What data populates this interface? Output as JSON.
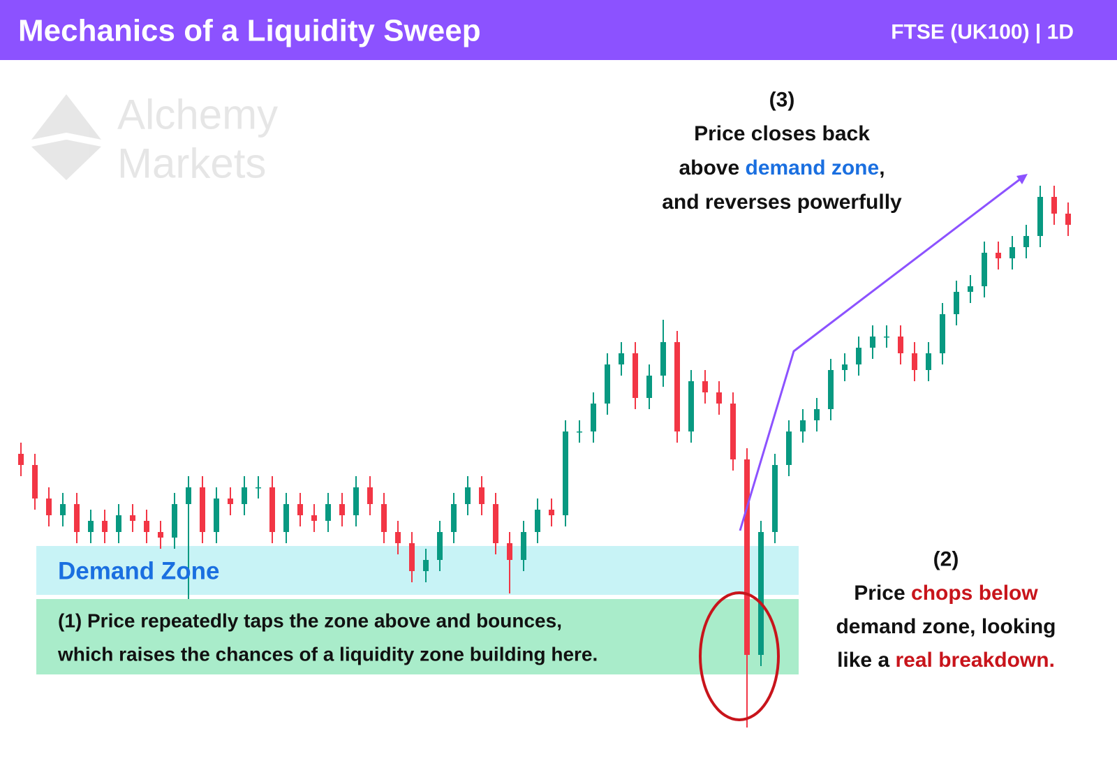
{
  "chart_data": {
    "type": "candlestick",
    "title": "Mechanics of a Liquidity Sweep",
    "subtitle": "FTSE  (UK100) | 1D",
    "watermark": [
      "Alchemy",
      "Markets"
    ],
    "zone_label": "Demand Zone",
    "annotations": {
      "one": [
        "(1) Price repeatedly taps the zone above and bounces,",
        "which raises the chances of a liquidity zone building here."
      ],
      "two": {
        "number": "(2)",
        "lines": [
          [
            "Price ",
            "chops below"
          ],
          [
            "demand zone, looking"
          ],
          [
            "like a ",
            "real breakdown."
          ]
        ]
      },
      "three": {
        "number": "(3)",
        "lines": [
          [
            "Price closes back"
          ],
          [
            "above ",
            "demand zone",
            ","
          ],
          [
            "and reverses powerfully"
          ]
        ]
      }
    },
    "up_color": "#089981",
    "down_color": "#f23645",
    "ylim": [
      0,
      100
    ],
    "open": [
      50,
      48,
      42,
      39,
      41,
      36,
      38,
      36,
      39,
      38,
      36,
      35,
      41,
      44,
      36,
      42,
      41,
      44,
      44,
      36,
      41,
      39,
      38,
      41,
      39,
      44,
      41,
      36,
      34,
      29,
      31,
      36,
      41,
      44,
      41,
      34,
      31,
      36,
      40,
      39,
      54,
      54,
      59,
      66,
      68,
      60,
      64,
      70,
      54,
      63,
      61,
      59,
      49,
      14,
      36,
      48,
      54,
      56,
      58,
      65,
      66,
      69,
      71,
      71,
      68,
      65,
      68,
      75,
      79,
      80,
      86,
      85,
      87,
      89,
      96,
      93
    ],
    "high": [
      52,
      50,
      44,
      43,
      43,
      40,
      40,
      41,
      41,
      40,
      38,
      43,
      46,
      46,
      44,
      44,
      46,
      46,
      46,
      43,
      43,
      41,
      43,
      43,
      46,
      46,
      43,
      38,
      36,
      33,
      38,
      43,
      46,
      46,
      43,
      36,
      38,
      42,
      42,
      56,
      56,
      61,
      68,
      70,
      70,
      66,
      74,
      72,
      65,
      65,
      63,
      61,
      51,
      38,
      50,
      56,
      58,
      60,
      67,
      68,
      71,
      73,
      73,
      73,
      70,
      70,
      77,
      81,
      82,
      88,
      88,
      89,
      91,
      98,
      98,
      95
    ],
    "low": [
      46,
      40,
      37,
      37,
      34,
      34,
      34,
      34,
      36,
      34,
      33,
      33,
      24,
      34,
      34,
      39,
      39,
      42,
      34,
      34,
      37,
      36,
      36,
      37,
      37,
      39,
      34,
      32,
      27,
      27,
      29,
      34,
      39,
      39,
      32,
      25,
      29,
      34,
      37,
      37,
      52,
      52,
      57,
      64,
      58,
      58,
      62,
      52,
      52,
      59,
      57,
      47,
      1,
      12,
      34,
      46,
      52,
      54,
      56,
      63,
      64,
      67,
      69,
      66,
      63,
      63,
      66,
      73,
      77,
      78,
      83,
      83,
      85,
      87,
      91,
      89
    ],
    "close": [
      48,
      42,
      39,
      41,
      36,
      38,
      36,
      39,
      38,
      36,
      35,
      41,
      44,
      36,
      42,
      41,
      44,
      44,
      36,
      41,
      39,
      38,
      41,
      39,
      44,
      41,
      36,
      34,
      29,
      31,
      36,
      41,
      44,
      41,
      34,
      31,
      36,
      40,
      39,
      54,
      54,
      59,
      66,
      68,
      60,
      64,
      70,
      54,
      63,
      61,
      59,
      49,
      14,
      36,
      48,
      54,
      56,
      58,
      65,
      66,
      69,
      71,
      71,
      68,
      65,
      68,
      75,
      79,
      80,
      86,
      85,
      87,
      89,
      96,
      93,
      91
    ]
  }
}
